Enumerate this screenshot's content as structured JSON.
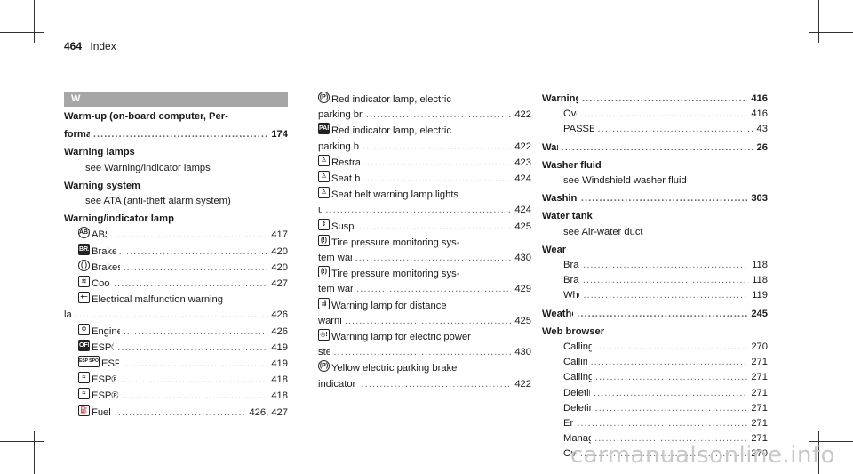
{
  "page": {
    "number": "464",
    "title": "Index"
  },
  "section_letter": "W",
  "col1": [
    {
      "text": "Warm-up (on-board computer, Per-",
      "bold": true
    },
    {
      "text": "formance menu)",
      "page": "174",
      "bold": true
    },
    {
      "text": "Warning lamps",
      "bold": true
    },
    {
      "text": "see Warning/indicator lamps",
      "indent": 1
    },
    {
      "text": "Warning system",
      "bold": true
    },
    {
      "text": "see ATA (anti-theft alarm system)",
      "indent": 1
    },
    {
      "text": "Warning/indicator lamp",
      "bold": true
    },
    {
      "icon": "abs-icon",
      "glyph": "ABS",
      "text": "ABS warning lamp",
      "page": "417",
      "indent": 2
    },
    {
      "icon": "brake-icon",
      "glyph": "BRAKE",
      "text": "Brake warning lamp (USA)",
      "page": "420",
      "indent": 2
    },
    {
      "icon": "brake-canada-icon",
      "glyph": "(!)",
      "text": "Brakes warning lamp (Canada)",
      "page": "420",
      "indent": 2
    },
    {
      "icon": "coolant-icon",
      "glyph": "≋",
      "text": "Coolant warning lamp",
      "page": "427",
      "indent": 2
    },
    {
      "icon": "battery-icon",
      "glyph": "+−",
      "text": "Electrical malfunction warning",
      "indent": 2
    },
    {
      "text": "lamp",
      "page": "426"
    },
    {
      "icon": "engine-icon",
      "glyph": "⚙",
      "text": "Engine diagnosis warning lamp",
      "page": "426",
      "indent": 2
    },
    {
      "icon": "esp-off-icon",
      "glyph": "OFF",
      "text": "ESP® OFF warning lamp",
      "page": "419",
      "indent": 2
    },
    {
      "icon": "esp-sport-icon",
      "glyph": "ESP SPORT",
      "text": "ESP® SPORT warning lamp",
      "page": "419",
      "indent": 2
    },
    {
      "icon": "esp-icon",
      "glyph": "≈",
      "text": "ESP® warning lamp flashes",
      "page": "418",
      "indent": 2
    },
    {
      "icon": "esp-icon",
      "glyph": "≈",
      "text": "ESP® warning lamp lights up",
      "page": "418",
      "indent": 2
    },
    {
      "icon": "fuel-icon",
      "glyph": "⛽",
      "text": "Fuel reserve warning lamp",
      "page": "426, 427",
      "indent": 2
    }
  ],
  "col2": [
    {
      "icon": "parking-brake-icon",
      "glyph": "(P)",
      "text": "Red indicator lamp, electric",
      "indent": 0
    },
    {
      "text": "parking brake applied (Canada only)",
      "page": "422"
    },
    {
      "icon": "park-icon",
      "glyph": "PARK",
      "text": "Red indicator lamp, electric"
    },
    {
      "text": "parking brake applied (USA only)",
      "page": "422"
    },
    {
      "icon": "restraint-icon",
      "glyph": "♙",
      "text": "Restraint system warning lamp",
      "page": "423"
    },
    {
      "icon": "seatbelt-icon",
      "glyph": "♙",
      "text": "Seat belt warning lamp flashes",
      "page": "424"
    },
    {
      "icon": "seatbelt-icon",
      "glyph": "♙",
      "text": "Seat belt warning lamp lights"
    },
    {
      "text": "up",
      "page": "424"
    },
    {
      "icon": "suspension-icon",
      "glyph": "⇕",
      "text": "Suspension warning lamp",
      "page": "425"
    },
    {
      "icon": "tire-pressure-icon",
      "glyph": "(!)",
      "text": "Tire pressure monitoring sys-"
    },
    {
      "text": "tem warning lamp flashes",
      "page": "430"
    },
    {
      "icon": "tire-pressure-icon",
      "glyph": "(!)",
      "text": "Tire pressure monitoring sys-"
    },
    {
      "text": "tem warning lamp lights up",
      "page": "429"
    },
    {
      "icon": "distance-icon",
      "glyph": "⇶",
      "text": "Warning lamp for distance"
    },
    {
      "text": "warning function",
      "page": "425"
    },
    {
      "icon": "power-steering-icon",
      "glyph": "◎!",
      "text": "Warning lamp for electric power"
    },
    {
      "text": "steering",
      "page": "430"
    },
    {
      "icon": "parking-brake-icon",
      "glyph": "(P)",
      "text": "Yellow electric parking brake"
    },
    {
      "text": "indicator lamp is malfunctioning",
      "page": "422"
    }
  ],
  "col3": [
    {
      "text": "Warning/indicator lamps",
      "page": "416",
      "bold": true
    },
    {
      "text": "Overview",
      "page": "416",
      "indent": 1
    },
    {
      "text": "PASSENGER AIR BAG",
      "page": "43",
      "indent": 1
    },
    {
      "text": "Warranty",
      "page": "26",
      "bold": true
    },
    {
      "text": "Washer fluid",
      "bold": true
    },
    {
      "text": "see Windshield washer fluid",
      "indent": 1
    },
    {
      "text": "Washing by hand (care)",
      "page": "303",
      "bold": true
    },
    {
      "text": "Water tank",
      "bold": true
    },
    {
      "text": "see Air-water duct",
      "indent": 1
    },
    {
      "text": "Wear",
      "bold": true
    },
    {
      "text": "Brake discs",
      "page": "118",
      "indent": 1
    },
    {
      "text": "Brake pads",
      "page": "118",
      "indent": 1
    },
    {
      "text": "Wheel bolts",
      "page": "119",
      "indent": 1
    },
    {
      "text": "Weather information",
      "page": "245",
      "bold": true
    },
    {
      "text": "Web browser",
      "bold": true
    },
    {
      "text": "Calling up a web page",
      "page": "270",
      "indent": 1
    },
    {
      "text": "Calling up options",
      "page": "271",
      "indent": 1
    },
    {
      "text": "Calling up the settings",
      "page": "271",
      "indent": 1
    },
    {
      "text": "Deleting a bookmark",
      "page": "271",
      "indent": 1
    },
    {
      "text": "Deleting browser data",
      "page": "271",
      "indent": 1
    },
    {
      "text": "Ending",
      "page": "271",
      "indent": 1
    },
    {
      "text": "Managing bookmarks",
      "page": "271",
      "indent": 1
    },
    {
      "text": "Overview",
      "page": "270",
      "indent": 1
    }
  ],
  "watermark": "carmanualsonline.info"
}
